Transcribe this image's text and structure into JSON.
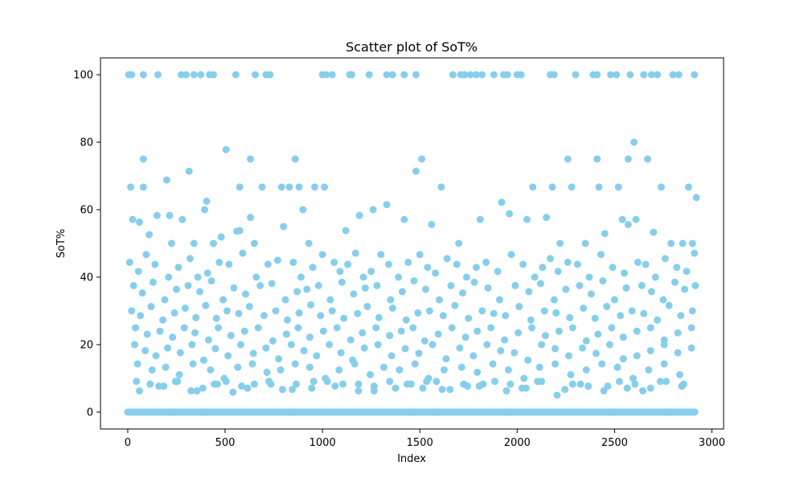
{
  "chart_data": {
    "type": "scatter",
    "title": "Scatter plot of SoT%",
    "xlabel": "Index",
    "ylabel": "SoT%",
    "xlim": [
      -140,
      3060
    ],
    "ylim": [
      -5,
      105
    ],
    "xticks": [
      0,
      500,
      1000,
      1500,
      2000,
      2500,
      3000
    ],
    "yticks": [
      0,
      20,
      40,
      60,
      80,
      100
    ],
    "grid": false,
    "legend": "none",
    "marker_color": "#87CEEB",
    "n_points": 2920,
    "series": [
      {
        "x": [
          5,
          20,
          80,
          155,
          275,
          300,
          340,
          375,
          420,
          440,
          555,
          655,
          710,
          730,
          1000,
          1020,
          1050,
          1140,
          1150,
          1240,
          1330,
          1360,
          1420,
          1480,
          1670,
          1710,
          1730,
          1760,
          1790,
          1820,
          1880,
          1930,
          1950,
          2000,
          2020,
          2170,
          2190,
          2300,
          2390,
          2410,
          2480,
          2510,
          2580,
          2650,
          2690,
          2720,
          2800,
          2830,
          2910,
          15,
          80,
          200,
          315,
          395,
          575,
          630,
          690,
          790,
          830,
          880,
          900,
          960,
          1010,
          1480,
          1510,
          1610,
          2080,
          2180,
          2280,
          2420,
          2520,
          2570,
          2600,
          2740,
          2880,
          2920,
          80,
          215,
          280,
          505,
          575,
          630,
          860,
          2260,
          2410,
          2570,
          2670,
          25,
          60,
          110,
          150,
          225,
          340,
          405,
          440,
          480,
          560,
          650,
          800,
          930,
          1120,
          1190,
          1260,
          1330,
          1420,
          1560,
          1700,
          1810,
          1920,
          1960,
          2050,
          2150,
          2220,
          2350,
          2450,
          2540,
          2610,
          2700,
          2790,
          2850,
          2900,
          10,
          55,
          95,
          140,
          210,
          260,
          320,
          360,
          410,
          470,
          520,
          590,
          660,
          720,
          770,
          850,
          890,
          950,
          1000,
          1060,
          1090,
          1130,
          1170,
          1210,
          1250,
          1300,
          1340,
          1390,
          1440,
          1500,
          1540,
          1580,
          1640,
          1690,
          1740,
          1790,
          1840,
          1900,
          1970,
          2030,
          2090,
          2130,
          2170,
          2210,
          2260,
          2310,
          2370,
          2430,
          2490,
          2550,
          2620,
          2660,
          2710,
          2760,
          2820,
          2870,
          2910,
          30,
          75,
          130,
          190,
          250,
          310,
          370,
          430,
          490,
          545,
          605,
          680,
          740,
          810,
          870,
          920,
          980,
          1040,
          1100,
          1160,
          1220,
          1280,
          1350,
          1410,
          1470,
          1530,
          1600,
          1660,
          1720,
          1780,
          1850,
          1910,
          1990,
          2060,
          2120,
          2190,
          2250,
          2320,
          2380,
          2440,
          2500,
          2560,
          2640,
          2690,
          2750,
          2810,
          2860,
          2915,
          20,
          65,
          120,
          180,
          240,
          295,
          350,
          400,
          455,
          510,
          570,
          625,
          700,
          760,
          820,
          880,
          940,
          990,
          1050,
          1110,
          1180,
          1230,
          1290,
          1360,
          1430,
          1490,
          1550,
          1620,
          1680,
          1750,
          1820,
          1880,
          1940,
          2010,
          2070,
          2140,
          2200,
          2270,
          2340,
          2400,
          2460,
          2530,
          2590,
          2650,
          2720,
          2780,
          2840,
          2900,
          40,
          100,
          165,
          230,
          290,
          345,
          415,
          465,
          530,
          600,
          670,
          745,
          815,
          875,
          935,
          1005,
          1075,
          1145,
          1205,
          1275,
          1345,
          1405,
          1465,
          1525,
          1595,
          1665,
          1735,
          1795,
          1865,
          1935,
          2005,
          2075,
          2145,
          2215,
          2285,
          2355,
          2415,
          2485,
          2545,
          2615,
          2685,
          2755,
          2825,
          2895,
          35,
          90,
          145,
          205,
          270,
          330,
          390,
          450,
          515,
          580,
          645,
          710,
          775,
          840,
          905,
          970,
          1035,
          1095,
          1155,
          1215,
          1285,
          1355,
          1425,
          1495,
          1565,
          1635,
          1705,
          1775,
          1845,
          1915,
          1985,
          2055,
          2125,
          2195,
          2265,
          2335,
          2405,
          2475,
          2545,
          2615,
          2685,
          2755,
          2825,
          2895,
          50,
          125,
          195,
          265,
          335,
          425,
          495,
          565,
          640,
          715,
          785,
          860,
          935,
          1015,
          1085,
          1165,
          1245,
          1315,
          1395,
          1475,
          1545,
          1625,
          1715,
          1795,
          1875,
          1955,
          2035,
          2115,
          2195,
          2275,
          2355,
          2435,
          2515,
          2595,
          2675,
          2755,
          2835,
          45,
          115,
          185,
          255,
          325,
          385,
          445,
          505,
          585,
          650,
          725,
          795,
          865,
          945,
          1025,
          1105,
          1185,
          1265,
          1345,
          1435,
          1515,
          1585,
          1655,
          1725,
          1805,
          1885,
          1965,
          2045,
          2125,
          2205,
          2285,
          2365,
          2445,
          2525,
          2605,
          2685,
          2765,
          2845,
          60,
          160,
          245,
          355,
          460,
          540,
          615,
          735,
          845,
          955,
          1065,
          1185,
          1265,
          1375,
          1455,
          1535,
          1615,
          1745,
          1825,
          1945,
          2025,
          2105,
          2245,
          2325,
          2465,
          2565,
          2645,
          2735,
          2855,
          70,
          220,
          380,
          540,
          700,
          860,
          1070,
          1200,
          1320,
          1460,
          1570,
          1680,
          1830,
          1960,
          2100,
          2230,
          2360,
          2500,
          2640,
          2780
        ],
        "y": [
          100,
          100,
          100,
          100,
          100,
          100,
          100,
          100,
          100,
          100,
          100,
          100,
          100,
          100,
          100,
          100,
          100,
          100,
          100,
          100,
          100,
          100,
          100,
          100,
          100,
          100,
          100,
          100,
          100,
          100,
          100,
          100,
          100,
          100,
          100,
          100,
          100,
          100,
          100,
          100,
          100,
          100,
          100,
          100,
          100,
          100,
          100,
          100,
          100,
          66.7,
          66.7,
          68.8,
          71.4,
          60,
          66.7,
          57.7,
          66.7,
          66.7,
          66.7,
          66.7,
          60,
          66.7,
          66.7,
          71.4,
          75,
          66.7,
          66.7,
          66.7,
          66.7,
          66.7,
          66.7,
          75,
          80,
          66.7,
          66.7,
          63.6,
          75,
          58.3,
          57.1,
          77.8,
          53.8,
          75,
          75,
          75,
          75,
          55.6,
          75,
          57.1,
          56.3,
          52.6,
          58.3,
          50,
          50,
          62.5,
          50,
          51.9,
          53.6,
          50,
          55,
          50,
          53.8,
          58.3,
          60,
          61.5,
          57.1,
          55.6,
          50,
          57.1,
          62.2,
          58.8,
          57.1,
          57.7,
          50,
          50,
          52.9,
          57.1,
          57.1,
          53.3,
          50,
          50,
          50,
          44.4,
          41.7,
          46.7,
          43.8,
          40,
          42.9,
          45.5,
          40,
          41.2,
          44.4,
          43.8,
          47.1,
          40,
          43.8,
          45,
          44.4,
          40,
          42.9,
          46.7,
          44.4,
          41.7,
          43.8,
          47.1,
          40,
          41.7,
          46.7,
          43.8,
          40,
          44.4,
          46.7,
          42.9,
          41.2,
          45.5,
          43.8,
          40,
          42.9,
          44.4,
          41.7,
          46.7,
          43.8,
          40,
          42.9,
          45.5,
          41.7,
          44.4,
          43.8,
          40,
          46.7,
          42.9,
          41.2,
          44.4,
          43.8,
          40,
          45.5,
          42.9,
          41.7,
          47.1,
          37.5,
          35.3,
          38.5,
          33.3,
          36.4,
          37.5,
          35.7,
          38.9,
          33.3,
          36.8,
          35,
          37.5,
          38.1,
          33.3,
          35.7,
          36.4,
          37.5,
          33.3,
          38.5,
          35,
          36.8,
          37.5,
          33.3,
          35.7,
          38.9,
          36.4,
          33.3,
          37.5,
          35.3,
          38.5,
          36.8,
          33.3,
          37.5,
          35.7,
          38.1,
          33.3,
          36.4,
          37.5,
          35,
          38.9,
          33.3,
          36.8,
          37.5,
          35.7,
          33.3,
          38.5,
          36.4,
          37.5,
          30,
          28.6,
          31.3,
          27.3,
          29.4,
          30.8,
          28,
          31.6,
          27.8,
          30,
          29.2,
          31.3,
          28.6,
          30,
          27.3,
          29.4,
          31.8,
          28.6,
          30,
          27.8,
          29.2,
          31.3,
          28,
          30.8,
          27.3,
          29.4,
          30,
          28.6,
          31.6,
          27.8,
          30,
          29.2,
          28.6,
          31.3,
          27.3,
          30,
          29.4,
          28,
          30.8,
          27.8,
          31.3,
          28.6,
          30,
          29.2,
          27.3,
          31.6,
          28.6,
          30,
          25,
          23.1,
          24,
          22.2,
          25,
          23.5,
          21.4,
          25,
          22.7,
          24,
          25,
          21.1,
          23.1,
          25,
          22.2,
          24,
          25,
          21.4,
          23.5,
          25,
          22.7,
          24,
          25,
          21.1,
          23.1,
          25,
          22.2,
          24,
          25,
          21.4,
          23.5,
          25,
          22.7,
          24,
          25,
          21.1,
          23.1,
          25,
          22.2,
          24,
          25,
          21.4,
          23.5,
          25,
          20,
          18.2,
          16.7,
          19,
          17.6,
          20,
          15.4,
          18.8,
          16.7,
          20,
          17.4,
          19,
          15.8,
          20,
          18.2,
          16.7,
          20,
          17.6,
          15.4,
          19,
          20,
          16.7,
          18.8,
          17.4,
          20,
          15.8,
          19,
          16.7,
          20,
          18.2,
          17.6,
          15.4,
          20,
          18.8,
          16.7,
          19,
          17.4,
          20,
          15.8,
          16.7,
          18.2,
          20,
          17.6,
          19,
          14.3,
          12.5,
          13.3,
          11.1,
          14.3,
          12.5,
          10,
          13.3,
          14.3,
          11.8,
          12.5,
          14.3,
          13.3,
          10,
          12.5,
          14.3,
          11.1,
          13.3,
          12.5,
          14.3,
          10,
          12.5,
          13.3,
          11.8,
          14.3,
          12.5,
          10,
          13.3,
          14.3,
          11.1,
          12.5,
          14.3,
          13.3,
          10,
          12.5,
          14.3,
          11.1,
          9.1,
          8.3,
          7.7,
          9.1,
          6.3,
          7.1,
          8.3,
          9.1,
          7.7,
          8.3,
          9.1,
          6.7,
          8.3,
          7.1,
          9.1,
          8.3,
          6.3,
          7.7,
          9.1,
          8.3,
          7.1,
          9.1,
          6.7,
          8.3,
          7.7,
          9.1,
          8.3,
          7.1,
          9.1,
          5,
          8.3,
          7.7,
          6.3,
          9.1,
          8.3,
          7.1,
          9.1,
          7.7,
          6.3,
          7.7,
          9.1,
          6.3,
          8.3,
          5.9,
          7.1,
          8.3,
          6.7,
          9.1,
          7.7,
          8.3,
          6.3,
          7.1,
          8.3,
          9.1,
          6.7,
          7.7,
          8.3,
          6.3,
          7.1,
          9.1,
          6.7,
          8.3,
          7.7,
          7.1,
          6.3,
          9.1,
          8.3,
          0,
          0,
          0,
          0,
          0,
          0,
          0,
          0,
          0,
          0,
          0,
          0,
          0,
          0,
          0,
          0,
          0,
          0,
          0,
          0
        ]
      }
    ]
  }
}
